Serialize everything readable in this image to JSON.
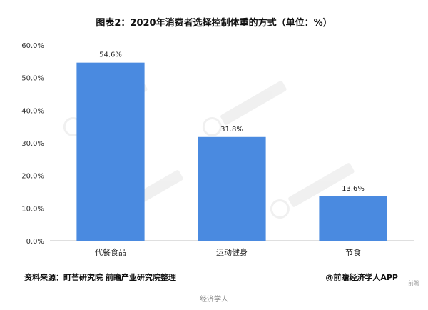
{
  "chart_data": {
    "type": "bar",
    "title": "图表2：2020年消费者选择控制体重的方式（单位：%）",
    "categories": [
      "代餐食品",
      "运动健身",
      "节食"
    ],
    "values": [
      54.6,
      31.8,
      13.6
    ],
    "value_labels": [
      "54.6%",
      "31.8%",
      "13.6%"
    ],
    "ylim": [
      0,
      60
    ],
    "yticks": [
      "0.0%",
      "10.0%",
      "20.0%",
      "30.0%",
      "40.0%",
      "50.0%",
      "60.0%"
    ],
    "grid": false,
    "legend": "none",
    "bar_color": "#4a8ae0"
  },
  "footer": {
    "source": "资料来源：町芒研究院 前瞻产业研究院整理",
    "brand": "@前瞻经济学人APP",
    "watermark": "前瞻",
    "bottom_watermark": "经济学人"
  }
}
